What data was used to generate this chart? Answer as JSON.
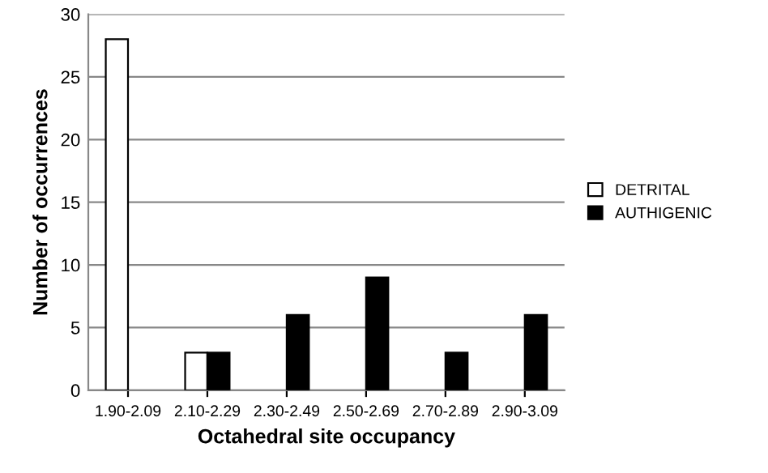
{
  "chart_data": {
    "type": "bar",
    "xlabel": "Octahedral site occupancy",
    "ylabel": "Number of occurrences",
    "categories": [
      "1.90-2.09",
      "2.10-2.29",
      "2.30-2.49",
      "2.50-2.69",
      "2.70-2.89",
      "2.90-3.09"
    ],
    "series": [
      {
        "name": "DETRITAL",
        "color": "#ffffff",
        "values": [
          28,
          3,
          null,
          null,
          null,
          null
        ]
      },
      {
        "name": "AUTHIGENIC",
        "color": "#000000",
        "values": [
          null,
          3,
          6,
          9,
          3,
          6
        ]
      }
    ],
    "ylim": [
      0,
      30
    ],
    "yticks": [
      0,
      5,
      10,
      15,
      20,
      25,
      30
    ],
    "grid": "y",
    "legend": "right"
  }
}
